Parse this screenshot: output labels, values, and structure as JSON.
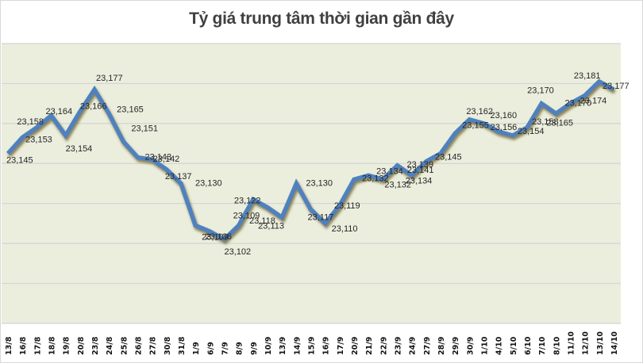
{
  "chart_data": {
    "type": "line",
    "title": "Tỷ giá trung tâm thời gian gần đây",
    "xlabel": "",
    "ylabel": "",
    "ylim": [
      23060,
      23200
    ],
    "grid": true,
    "legend": null,
    "categories": [
      "13/8",
      "16/8",
      "17/8",
      "18/8",
      "19/8",
      "20/8",
      "23/8",
      "24/8",
      "25/8",
      "26/8",
      "27/8",
      "30/8",
      "31/8",
      "1/9",
      "6/9",
      "7/9",
      "8/9",
      "9/9",
      "10/9",
      "13/9",
      "14/9",
      "15/9",
      "16/9",
      "17/9",
      "20/9",
      "21/9",
      "22/9",
      "23/9",
      "24/9",
      "27/9",
      "28/9",
      "29/9",
      "30/9",
      "1/10",
      "4/10",
      "5/10",
      "6/10",
      "7/10",
      "8/10",
      "11/10",
      "12/10",
      "13/10",
      "14/10"
    ],
    "series": [
      {
        "name": "Tỷ giá trung tâm",
        "color": "#4f81bd",
        "values": [
          23145,
          23153,
          23158,
          23164,
          23154,
          23166,
          23177,
          23165,
          23151,
          23143,
          23142,
          23137,
          23130,
          23109,
          23106,
          23102,
          23109,
          23122,
          23118,
          23113,
          23130,
          23117,
          23110,
          23119,
          23132,
          23134,
          23132,
          23139,
          23134,
          23141,
          23145,
          23155,
          23162,
          23160,
          23156,
          23154,
          23158,
          23170,
          23165,
          23170,
          23174,
          23181,
          23177
        ]
      }
    ]
  },
  "colors": {
    "plot_background": "#ebeedd",
    "gridline": "#d4d4d4",
    "line": "#4f81bd",
    "title_text": "#404040"
  }
}
